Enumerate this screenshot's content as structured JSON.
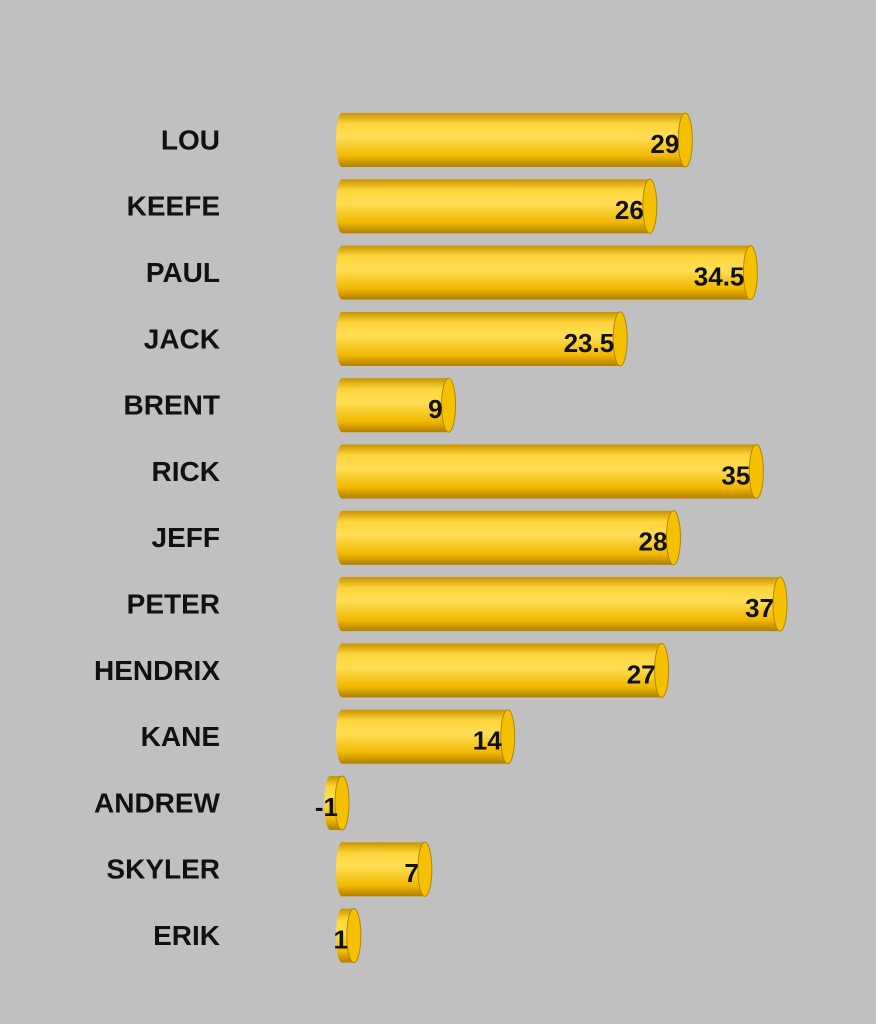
{
  "chart_data": {
    "type": "bar",
    "orientation": "horizontal",
    "color": "#f5c000",
    "categories": [
      "LOU",
      "KEEFE",
      "PAUL",
      "JACK",
      "BRENT",
      "RICK",
      "JEFF",
      "PETER",
      "HENDRIX",
      "KANE",
      "ANDREW",
      "SKYLER",
      "ERIK"
    ],
    "values": [
      29,
      26,
      34.5,
      23.5,
      9,
      35,
      28,
      37,
      27,
      14,
      -1,
      7,
      1
    ]
  }
}
